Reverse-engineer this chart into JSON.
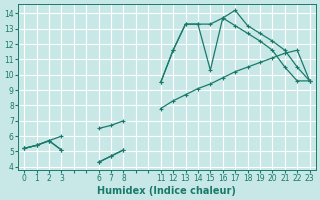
{
  "xlabel": "Humidex (Indice chaleur)",
  "bg_color": "#c8e8e8",
  "grid_color": "#ffffff",
  "line_color": "#1a7a6a",
  "xlim": [
    -0.5,
    23.5
  ],
  "ylim": [
    3.8,
    14.6
  ],
  "xticks": [
    0,
    1,
    2,
    3,
    4,
    5,
    6,
    7,
    8,
    9,
    10,
    11,
    12,
    13,
    14,
    15,
    16,
    17,
    18,
    19,
    20,
    21,
    22,
    23
  ],
  "xtick_labels": [
    "0",
    "1",
    "2",
    "3",
    "",
    "",
    "6",
    "7",
    "8",
    "",
    "",
    "11",
    "12",
    "13",
    "14",
    "15",
    "16",
    "17",
    "18",
    "19",
    "20",
    "21",
    "22",
    "23"
  ],
  "yticks": [
    4,
    5,
    6,
    7,
    8,
    9,
    10,
    11,
    12,
    13,
    14
  ],
  "line1_x": [
    0,
    1,
    2,
    3,
    6,
    7,
    8,
    11,
    12,
    13,
    14,
    15,
    16,
    17,
    18,
    19,
    20,
    21,
    22,
    23
  ],
  "line1_y": [
    5.2,
    5.4,
    5.7,
    5.1,
    4.3,
    4.7,
    5.1,
    9.5,
    11.6,
    13.3,
    13.3,
    10.3,
    13.7,
    14.2,
    13.2,
    12.7,
    12.2,
    11.6,
    10.5,
    9.6
  ],
  "line2_x": [
    0,
    1,
    2,
    3,
    6,
    7,
    8,
    11,
    12,
    13,
    14,
    15,
    16,
    17,
    18,
    19,
    20,
    21,
    22,
    23
  ],
  "line2_y": [
    5.2,
    5.4,
    5.7,
    6.0,
    6.5,
    6.7,
    7.0,
    7.8,
    8.3,
    8.7,
    9.1,
    9.4,
    9.8,
    10.2,
    10.5,
    10.8,
    11.1,
    11.4,
    11.6,
    9.6
  ],
  "line3_x": [
    0,
    1,
    2,
    3,
    6,
    7,
    8,
    11,
    12,
    13,
    14,
    15,
    16,
    17,
    18,
    19,
    20,
    21,
    22,
    23
  ],
  "line3_y": [
    5.2,
    5.4,
    5.7,
    5.1,
    4.3,
    4.7,
    5.1,
    9.5,
    11.6,
    13.3,
    13.3,
    13.3,
    13.7,
    13.2,
    12.7,
    12.2,
    11.6,
    10.5,
    9.6,
    9.6
  ],
  "line1_segments": [
    [
      0,
      3
    ],
    [
      6,
      8
    ],
    [
      11,
      23
    ]
  ],
  "line2_segments": [
    [
      0,
      3
    ],
    [
      6,
      8
    ],
    [
      11,
      23
    ]
  ],
  "line3_segments": [
    [
      0,
      3
    ],
    [
      6,
      8
    ],
    [
      11,
      23
    ]
  ]
}
